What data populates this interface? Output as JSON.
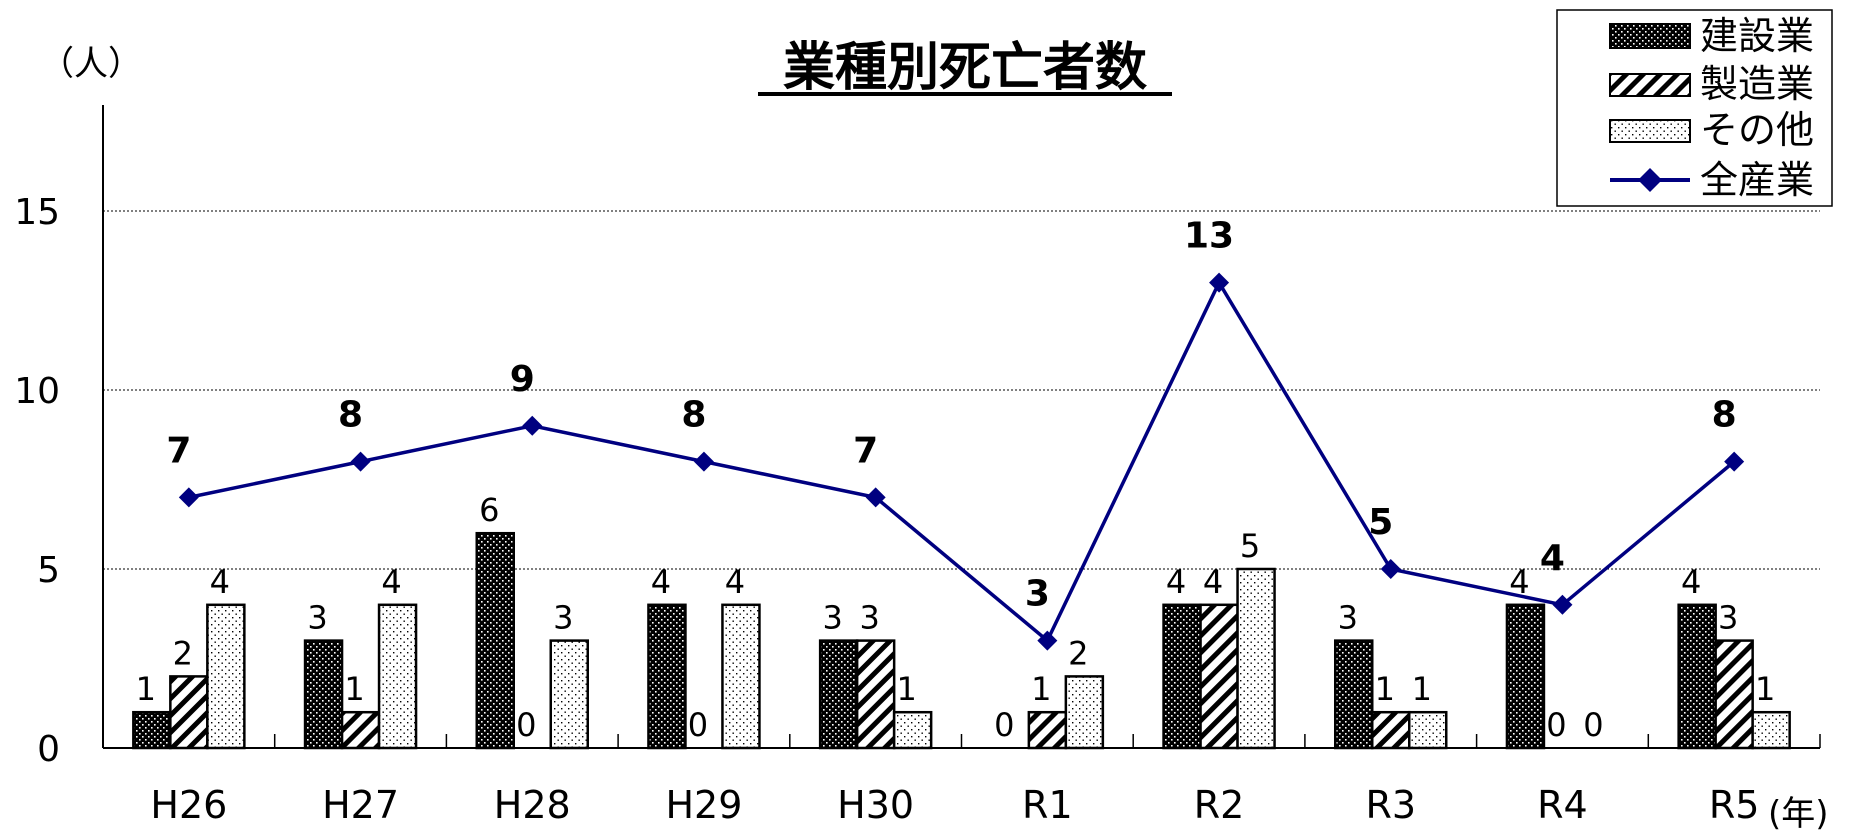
{
  "chart_data": {
    "type": "bar",
    "title": "業種別死亡者数",
    "y_unit_label": "（人）",
    "x_unit_label": "(年)",
    "categories": [
      "H26",
      "H27",
      "H28",
      "H29",
      "H30",
      "R1",
      "R2",
      "R3",
      "R4",
      "R5"
    ],
    "ylim": [
      0,
      18
    ],
    "yticks": [
      0,
      5,
      10,
      15
    ],
    "grid": true,
    "legend_position": "top-right",
    "series": [
      {
        "name": "建設業",
        "type": "bar",
        "pattern": "dense-dots",
        "values": [
          1,
          3,
          6,
          4,
          3,
          0,
          4,
          3,
          4,
          4
        ]
      },
      {
        "name": "製造業",
        "type": "bar",
        "pattern": "diagonal-hatch",
        "values": [
          2,
          1,
          0,
          0,
          3,
          1,
          4,
          1,
          0,
          3
        ]
      },
      {
        "name": "その他",
        "type": "bar",
        "pattern": "light-dots",
        "values": [
          4,
          4,
          3,
          4,
          1,
          2,
          5,
          1,
          0,
          1
        ]
      },
      {
        "name": "全産業",
        "type": "line",
        "color": "#000080",
        "marker": "diamond",
        "values": [
          7,
          8,
          9,
          8,
          7,
          3,
          13,
          5,
          4,
          8
        ]
      }
    ]
  }
}
